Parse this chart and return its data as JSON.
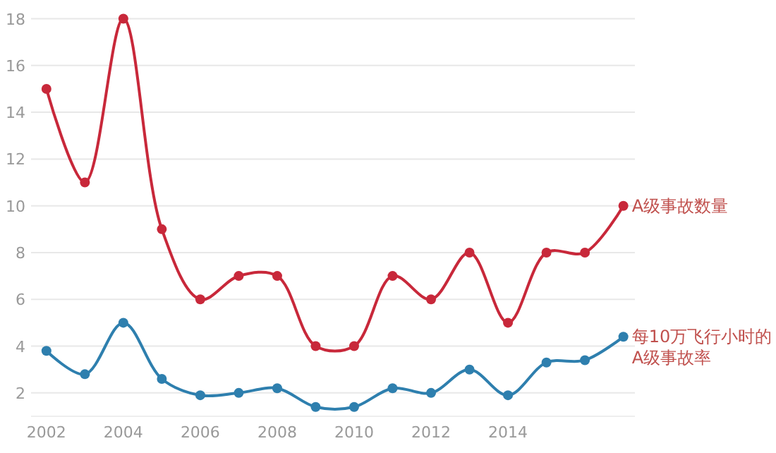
{
  "chart_data": {
    "type": "line",
    "x": [
      2002,
      2003,
      2004,
      2005,
      2006,
      2007,
      2008,
      2009,
      2010,
      2011,
      2012,
      2013,
      2014,
      2015,
      2016,
      2017
    ],
    "series": [
      {
        "name": "A级事故数量",
        "color": "#c8283a",
        "values": [
          15,
          11,
          18,
          9,
          6,
          7,
          7,
          4,
          4,
          7,
          6,
          8,
          5,
          8,
          8,
          10
        ]
      },
      {
        "name": "每10万飞行小时的\nA级事故率",
        "color": "#2e7fae",
        "values": [
          3.8,
          2.8,
          5.0,
          2.6,
          1.9,
          2.0,
          2.2,
          1.4,
          1.4,
          2.2,
          2.0,
          3.0,
          1.9,
          3.3,
          3.4,
          4.4
        ]
      }
    ],
    "xlim": [
      2001.6,
      2017.3
    ],
    "xticks": [
      2002,
      2004,
      2006,
      2008,
      2010,
      2012,
      2014
    ],
    "ylim": [
      1,
      18.8
    ],
    "yticks": [
      2,
      4,
      6,
      8,
      10,
      12,
      14,
      16,
      18
    ],
    "grid": "y",
    "marker": "circle",
    "line_style": "solid"
  }
}
